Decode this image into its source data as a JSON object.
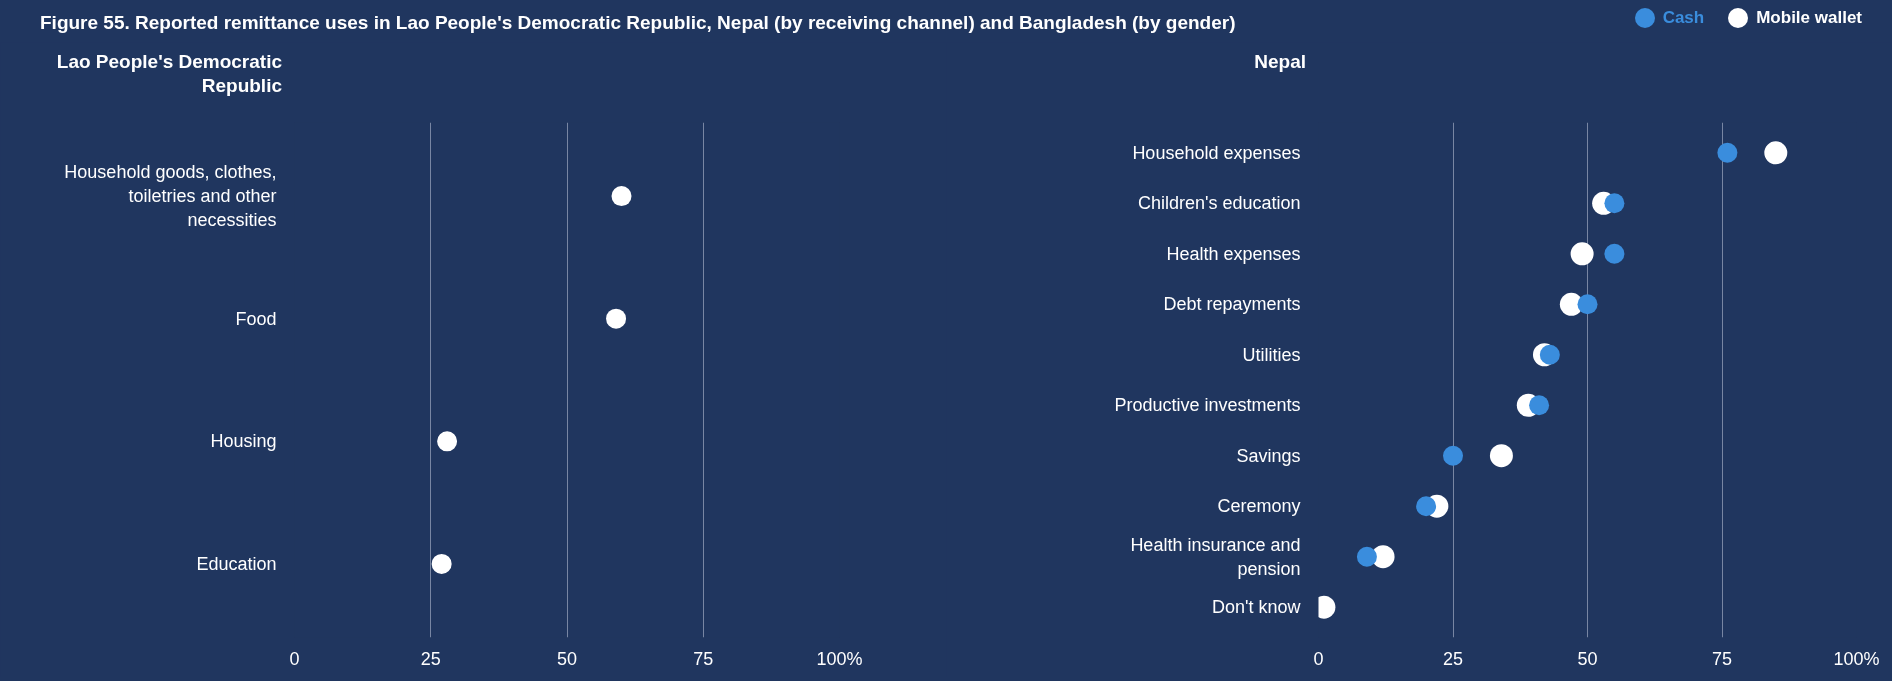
{
  "chart_data": [
    {
      "type": "scatter",
      "title": "Lao People's Democratic Republic",
      "annotations": [
        "Figure 55. Reported remittance uses in Lao People's Democratic Republic, Nepal (by receiving channel) and Bangladesh (by gender)"
      ],
      "categories": [
        "Household goods, clothes, toiletries and other necessities",
        "Food",
        "Housing",
        "Education"
      ],
      "series": [
        {
          "color": "#ffffff",
          "values": [
            60,
            59,
            28,
            27
          ]
        }
      ],
      "orientation": "horizontal",
      "xlim": [
        0,
        100
      ],
      "xticks": [
        0,
        25,
        50,
        75,
        {
          "value": 100,
          "label": "100%"
        }
      ],
      "grid": "x",
      "marker": "circle",
      "legend": false
    },
    {
      "type": "scatter",
      "title": "Nepal",
      "categories": [
        "Household expenses",
        "Children's education",
        "Health expenses",
        "Debt repayments",
        "Utilities",
        "Productive investments",
        "Savings",
        "Ceremony",
        "Health insurance and pension",
        "Don't know"
      ],
      "series": [
        {
          "name": "Mobile wallet",
          "color": "#ffffff",
          "values": [
            85,
            53,
            49,
            47,
            42,
            39,
            34,
            22,
            12,
            1
          ]
        },
        {
          "name": "Cash",
          "color": "#3a8ddd",
          "values": [
            76,
            55,
            55,
            50,
            43,
            41,
            25,
            20,
            9,
            null
          ]
        }
      ],
      "orientation": "horizontal",
      "xlim": [
        0,
        100
      ],
      "xticks": [
        0,
        25,
        50,
        75,
        {
          "value": 100,
          "label": "100%"
        }
      ],
      "grid": "x",
      "marker": "circle",
      "legend": "top right"
    }
  ]
}
